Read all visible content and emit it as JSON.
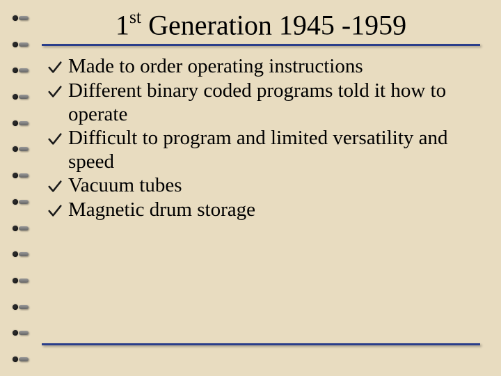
{
  "slide": {
    "title_ordinal": "1",
    "title_suffix": "st",
    "title_rest": " Generation 1945 -1959",
    "bullets": [
      "Made to order operating instructions",
      "Different binary coded programs told it how to operate",
      "Difficult to program and limited versatility and speed",
      "Vacuum tubes",
      "Magnetic drum storage"
    ]
  },
  "style": {
    "background_color": "#e8dcc0",
    "underline_color": "#2a3e8a",
    "title_fontsize": 40,
    "bullet_fontsize": 29,
    "check_color": "#1a1a1a",
    "spiral_count": 14
  }
}
